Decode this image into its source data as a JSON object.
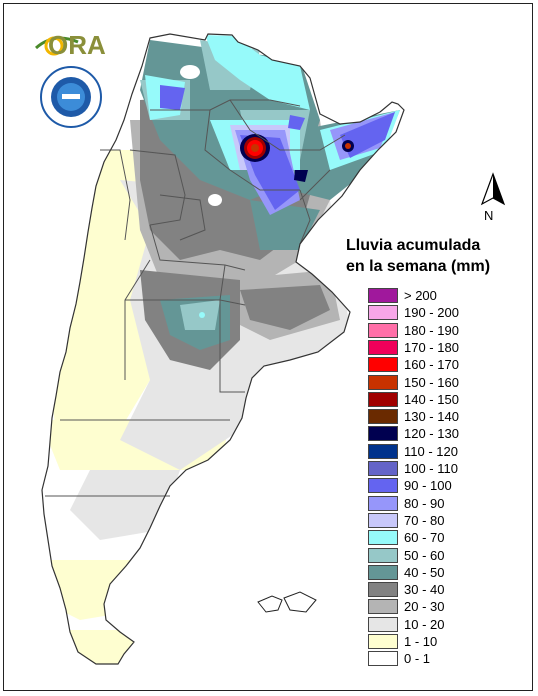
{
  "map": {
    "title_line1": "Lluvia acumulada",
    "title_line2": "en la semana (mm)",
    "north_label": "N",
    "logo_text": "ORA",
    "colors": {
      "land_dry": "#fefed0",
      "land_white": "#ffffff",
      "border": "#555555",
      "coast": "#333333"
    }
  },
  "legend": [
    {
      "label": "> 200",
      "color": "#a0189c"
    },
    {
      "label": "190 - 200",
      "color": "#f7a6e8"
    },
    {
      "label": "180 - 190",
      "color": "#ff6fa8"
    },
    {
      "label": "170 - 180",
      "color": "#f0005a"
    },
    {
      "label": "160 - 170",
      "color": "#ff0000"
    },
    {
      "label": "150 - 160",
      "color": "#c83200"
    },
    {
      "label": "140 - 150",
      "color": "#a00000"
    },
    {
      "label": "130 - 140",
      "color": "#6a2a00"
    },
    {
      "label": "120 - 130",
      "color": "#000050"
    },
    {
      "label": "110 - 120",
      "color": "#00328c"
    },
    {
      "label": "100 - 110",
      "color": "#6464c8"
    },
    {
      "label": "90 - 100",
      "color": "#6464f0"
    },
    {
      "label": "80 - 90",
      "color": "#9696fa"
    },
    {
      "label": "70 - 80",
      "color": "#c8c8fa"
    },
    {
      "label": "60 - 70",
      "color": "#96fafa"
    },
    {
      "label": "50 - 60",
      "color": "#96c8c8"
    },
    {
      "label": "40 - 50",
      "color": "#649696"
    },
    {
      "label": "30 - 40",
      "color": "#828282"
    },
    {
      "label": "20 - 30",
      "color": "#b4b4b4"
    },
    {
      "label": "10 - 20",
      "color": "#e6e6e6"
    },
    {
      "label": "1 - 10",
      "color": "#fefed0"
    },
    {
      "label": "0 - 1",
      "color": "#ffffff"
    }
  ]
}
